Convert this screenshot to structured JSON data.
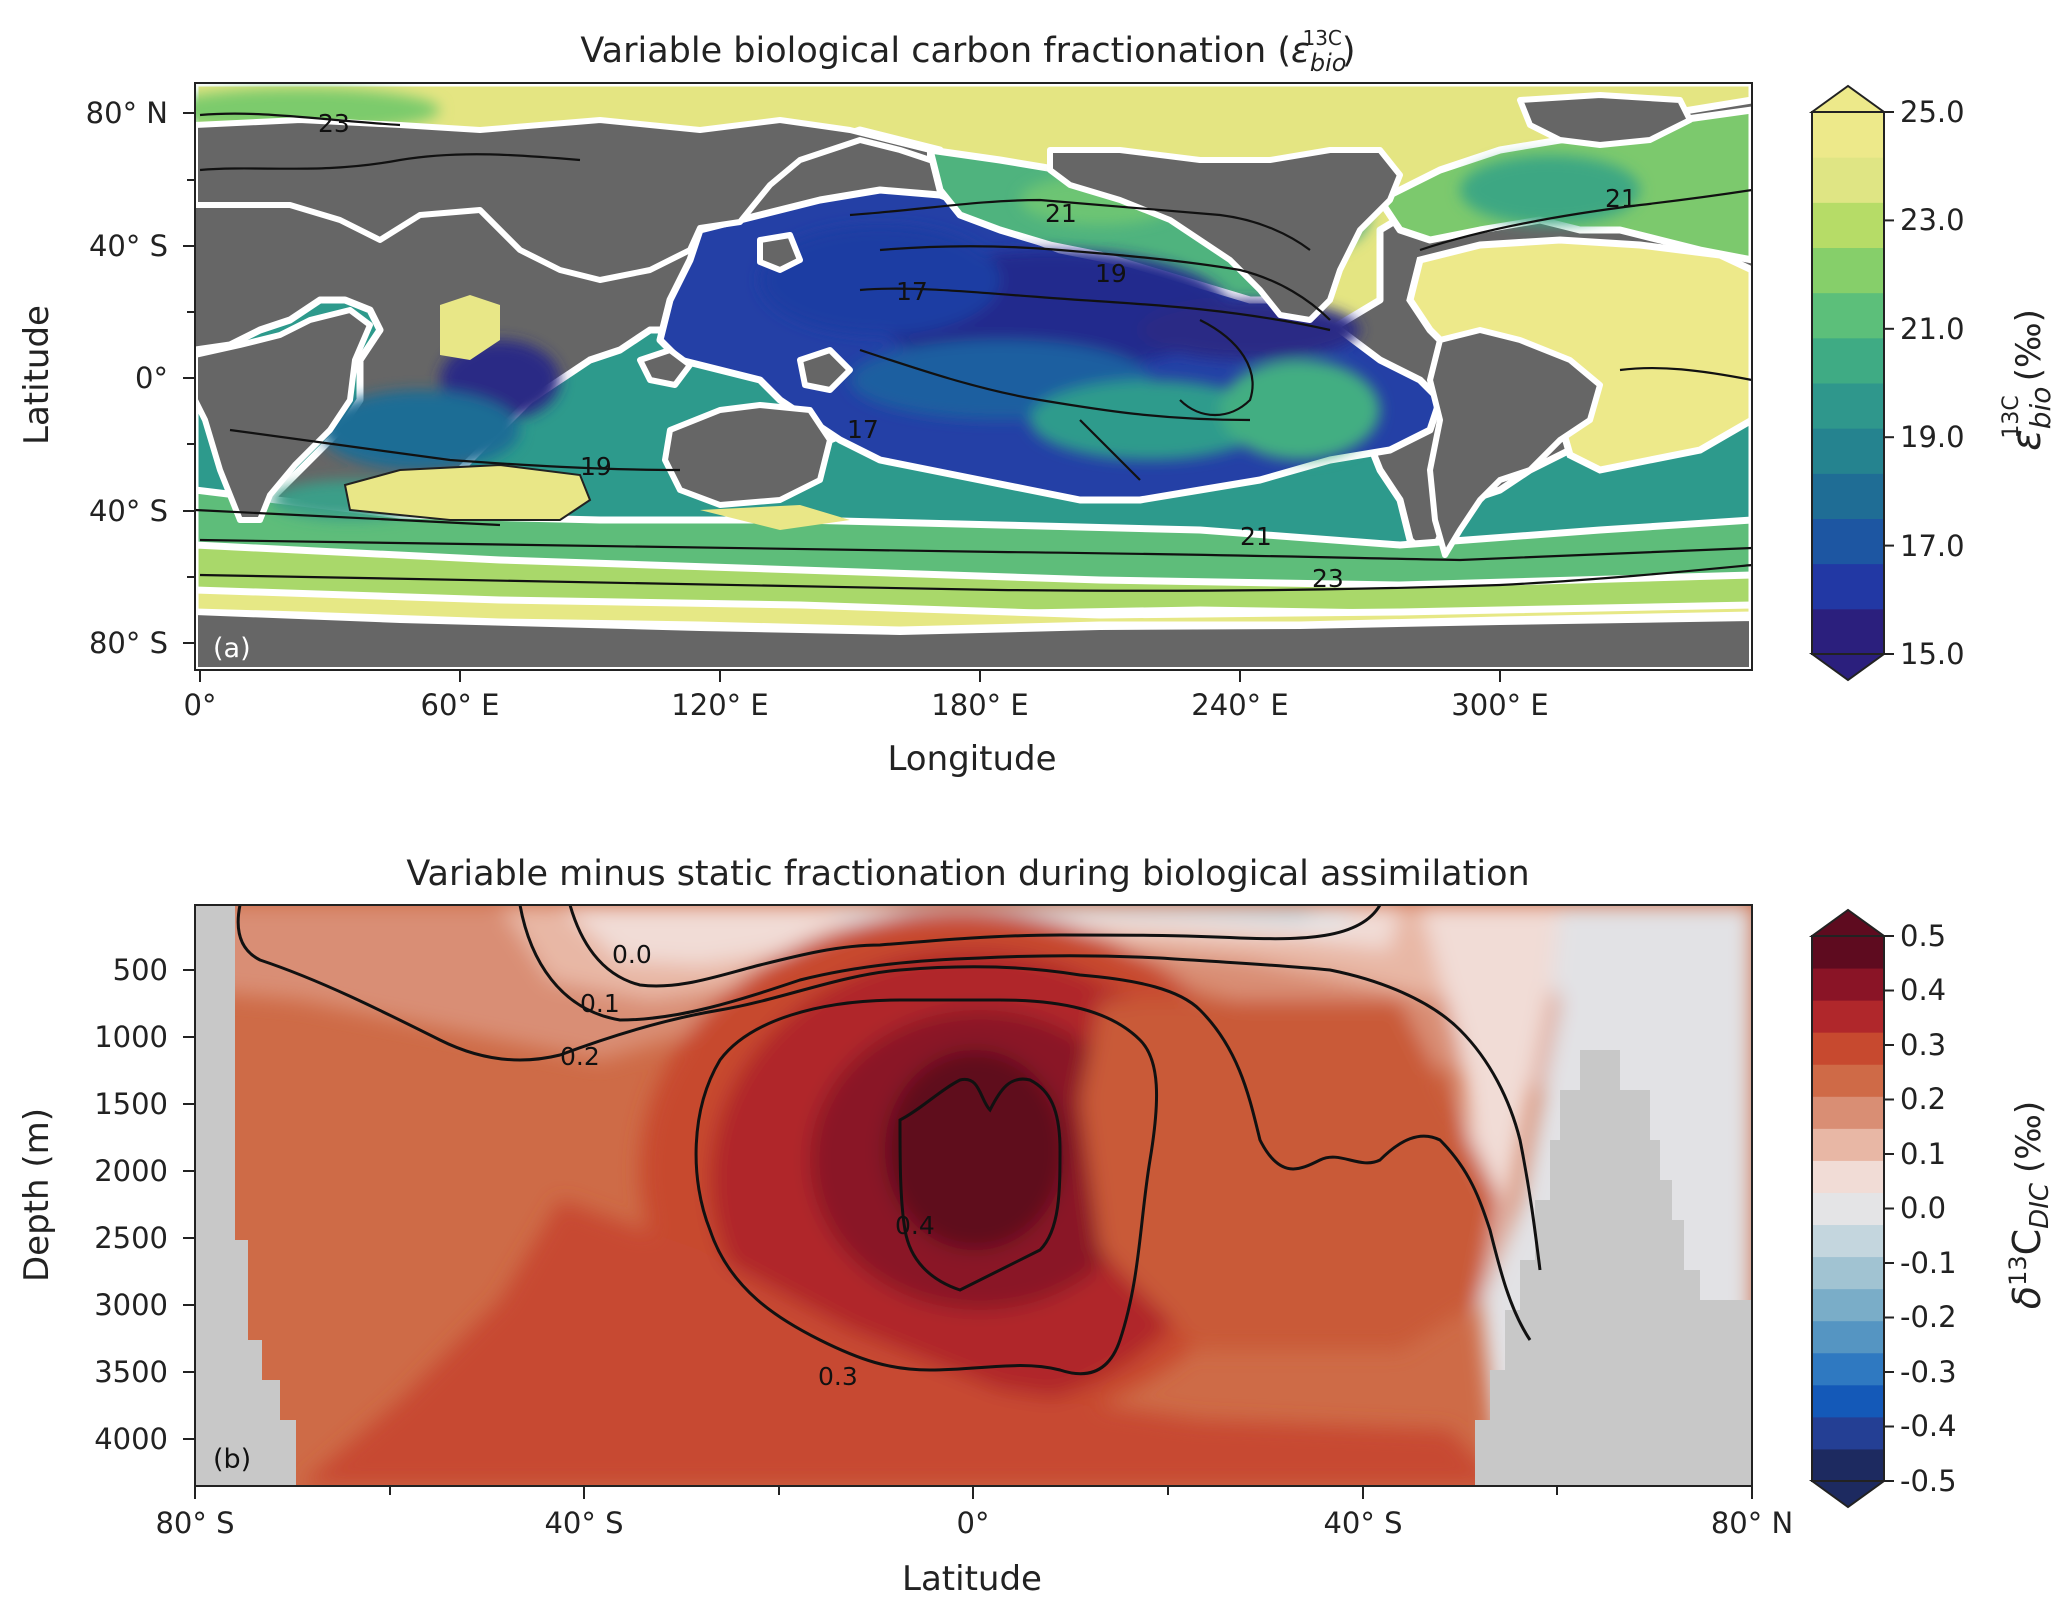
{
  "chart_data": [
    {
      "panel": "(a)",
      "type": "heatmap",
      "title": "Variable biological carbon fractionation",
      "title_symbol": "ε",
      "title_superscript": "13C",
      "title_subscript": "bio",
      "xlabel": "Longitude",
      "ylabel": "Latitude",
      "x_ticks": [
        "0°",
        "60° E",
        "120° E",
        "180° E",
        "240° E",
        "300° E"
      ],
      "y_ticks": [
        "80° N",
        "40° S",
        "0°",
        "40° S",
        "80° S"
      ],
      "colorbar": {
        "label": "ε",
        "label_superscript": "13C",
        "label_subscript": "bio",
        "label_unit": "(‰)",
        "range": [
          15.0,
          25.0
        ],
        "tick_labels": [
          "25.0",
          "23.0",
          "21.0",
          "19.0",
          "17.0",
          "15.0"
        ],
        "extend": "both",
        "colors": [
          "#2b1f7d",
          "#2238a4",
          "#1d56a2",
          "#1f6d95",
          "#25838f",
          "#2f978c",
          "#3fab84",
          "#5cbf7a",
          "#86cf6a",
          "#b6dc67",
          "#dfe584",
          "#ede98a"
        ]
      },
      "contour_labels": [
        "23",
        "21",
        "21",
        "19",
        "17",
        "17",
        "19",
        "21",
        "23"
      ],
      "land_color": "#666666"
    },
    {
      "panel": "(b)",
      "type": "heatmap",
      "title": "Variable minus static fractionation during biological assimilation",
      "xlabel": "Latitude",
      "ylabel": "Depth (m)",
      "x_ticks": [
        "80° S",
        "40° S",
        "0°",
        "40° S",
        "80° N"
      ],
      "y_ticks": [
        "500",
        "1000",
        "1500",
        "2000",
        "2500",
        "3000",
        "3500",
        "4000"
      ],
      "colorbar": {
        "label": "δ",
        "label_superscript": "13",
        "label_main": "C",
        "label_subscript": "DIC",
        "label_unit": "(‰)",
        "range": [
          -0.5,
          0.5
        ],
        "tick_labels": [
          "0.5",
          "0.4",
          "0.3",
          "0.2",
          "0.1",
          "0.0",
          "-0.1",
          "-0.2",
          "-0.3",
          "-0.4",
          "-0.5"
        ],
        "extend": "both",
        "colors": [
          "#5e0b1f",
          "#8a1426",
          "#b0272b",
          "#c7492f",
          "#cf6a47",
          "#d98e74",
          "#e8b7a5",
          "#f1dcd6",
          "#e4e4e6",
          "#c4d6de",
          "#a1c3d2",
          "#7aadc8",
          "#5595c2",
          "#2f79c1",
          "#1459b8",
          "#243f94",
          "#1d2a60"
        ]
      },
      "contour_labels": [
        "0.0",
        "0.1",
        "0.2",
        "0.4",
        "0.3"
      ],
      "bathymetry_color": "#c8c8c8"
    }
  ]
}
